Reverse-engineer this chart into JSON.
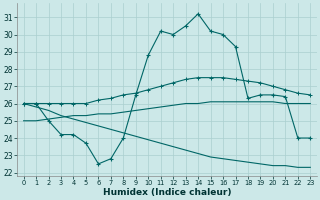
{
  "background_color": "#cce8e8",
  "grid_color": "#aacfcf",
  "line_color": "#006666",
  "xlabel": "Humidex (Indice chaleur)",
  "xlim": [
    -0.5,
    23.5
  ],
  "ylim": [
    21.8,
    31.8
  ],
  "yticks": [
    22,
    23,
    24,
    25,
    26,
    27,
    28,
    29,
    30,
    31
  ],
  "xticks": [
    0,
    1,
    2,
    3,
    4,
    5,
    6,
    7,
    8,
    9,
    10,
    11,
    12,
    13,
    14,
    15,
    16,
    17,
    18,
    19,
    20,
    21,
    22,
    23
  ],
  "humidex_y": [
    26.0,
    26.0,
    25.0,
    24.2,
    24.2,
    23.7,
    22.5,
    22.8,
    24.0,
    26.5,
    28.8,
    30.2,
    30.0,
    30.5,
    31.2,
    30.2,
    30.0,
    29.3,
    26.3,
    26.5,
    26.5,
    26.4,
    24.0,
    24.0
  ],
  "temp_y": [
    26.0,
    26.0,
    26.0,
    26.0,
    26.0,
    26.0,
    26.2,
    26.3,
    26.5,
    26.6,
    26.8,
    27.0,
    27.2,
    27.4,
    27.5,
    27.5,
    27.5,
    27.4,
    27.3,
    27.2,
    27.0,
    26.8,
    26.6,
    26.5
  ],
  "dew_upper_y": [
    25.0,
    25.0,
    25.1,
    25.2,
    25.3,
    25.3,
    25.4,
    25.4,
    25.5,
    25.6,
    25.7,
    25.8,
    25.9,
    26.0,
    26.0,
    26.1,
    26.1,
    26.1,
    26.1,
    26.1,
    26.1,
    26.0,
    26.0,
    26.0
  ],
  "dew_lower_y": [
    26.0,
    25.8,
    25.6,
    25.3,
    25.1,
    24.9,
    24.7,
    24.5,
    24.3,
    24.1,
    23.9,
    23.7,
    23.5,
    23.3,
    23.1,
    22.9,
    22.8,
    22.7,
    22.6,
    22.5,
    22.4,
    22.4,
    22.3,
    22.3
  ]
}
